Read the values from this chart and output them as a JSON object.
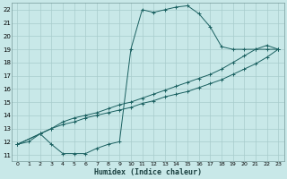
{
  "xlabel": "Humidex (Indice chaleur)",
  "xlim": [
    -0.5,
    23.5
  ],
  "ylim": [
    10.5,
    22.5
  ],
  "xticks": [
    0,
    1,
    2,
    3,
    4,
    5,
    6,
    7,
    8,
    9,
    10,
    11,
    12,
    13,
    14,
    15,
    16,
    17,
    18,
    19,
    20,
    21,
    22,
    23
  ],
  "yticks": [
    11,
    12,
    13,
    14,
    15,
    16,
    17,
    18,
    19,
    20,
    21,
    22
  ],
  "bg_color": "#c8e8e8",
  "grid_color": "#a8cccc",
  "line_color": "#1a6060",
  "line1_x": [
    0,
    1,
    2,
    3,
    4,
    5,
    6,
    7,
    8,
    9,
    10,
    11,
    12,
    13,
    14,
    15,
    16,
    17,
    18,
    19,
    20,
    21,
    22,
    23
  ],
  "line1_y": [
    11.8,
    12.0,
    12.6,
    11.8,
    11.1,
    11.1,
    11.1,
    11.5,
    11.8,
    12.0,
    19.0,
    22.0,
    21.8,
    22.0,
    22.2,
    22.3,
    21.7,
    20.7,
    19.2,
    19.0,
    19.0,
    19.0,
    19.0,
    19.0
  ],
  "line2_x": [
    0,
    2,
    3,
    4,
    5,
    6,
    7,
    8,
    9,
    10,
    11,
    12,
    13,
    14,
    15,
    16,
    17,
    18,
    19,
    20,
    21,
    22,
    23
  ],
  "line2_y": [
    11.8,
    12.6,
    13.0,
    13.5,
    13.8,
    14.0,
    14.2,
    14.5,
    14.8,
    15.0,
    15.3,
    15.6,
    15.9,
    16.2,
    16.5,
    16.8,
    17.1,
    17.5,
    18.0,
    18.5,
    19.0,
    19.3,
    19.0
  ],
  "line3_x": [
    0,
    2,
    3,
    4,
    5,
    6,
    7,
    8,
    9,
    10,
    11,
    12,
    13,
    14,
    15,
    16,
    17,
    18,
    19,
    20,
    21,
    22,
    23
  ],
  "line3_y": [
    11.8,
    12.6,
    13.0,
    13.3,
    13.5,
    13.8,
    14.0,
    14.2,
    14.4,
    14.6,
    14.9,
    15.1,
    15.4,
    15.6,
    15.8,
    16.1,
    16.4,
    16.7,
    17.1,
    17.5,
    17.9,
    18.4,
    19.0
  ]
}
